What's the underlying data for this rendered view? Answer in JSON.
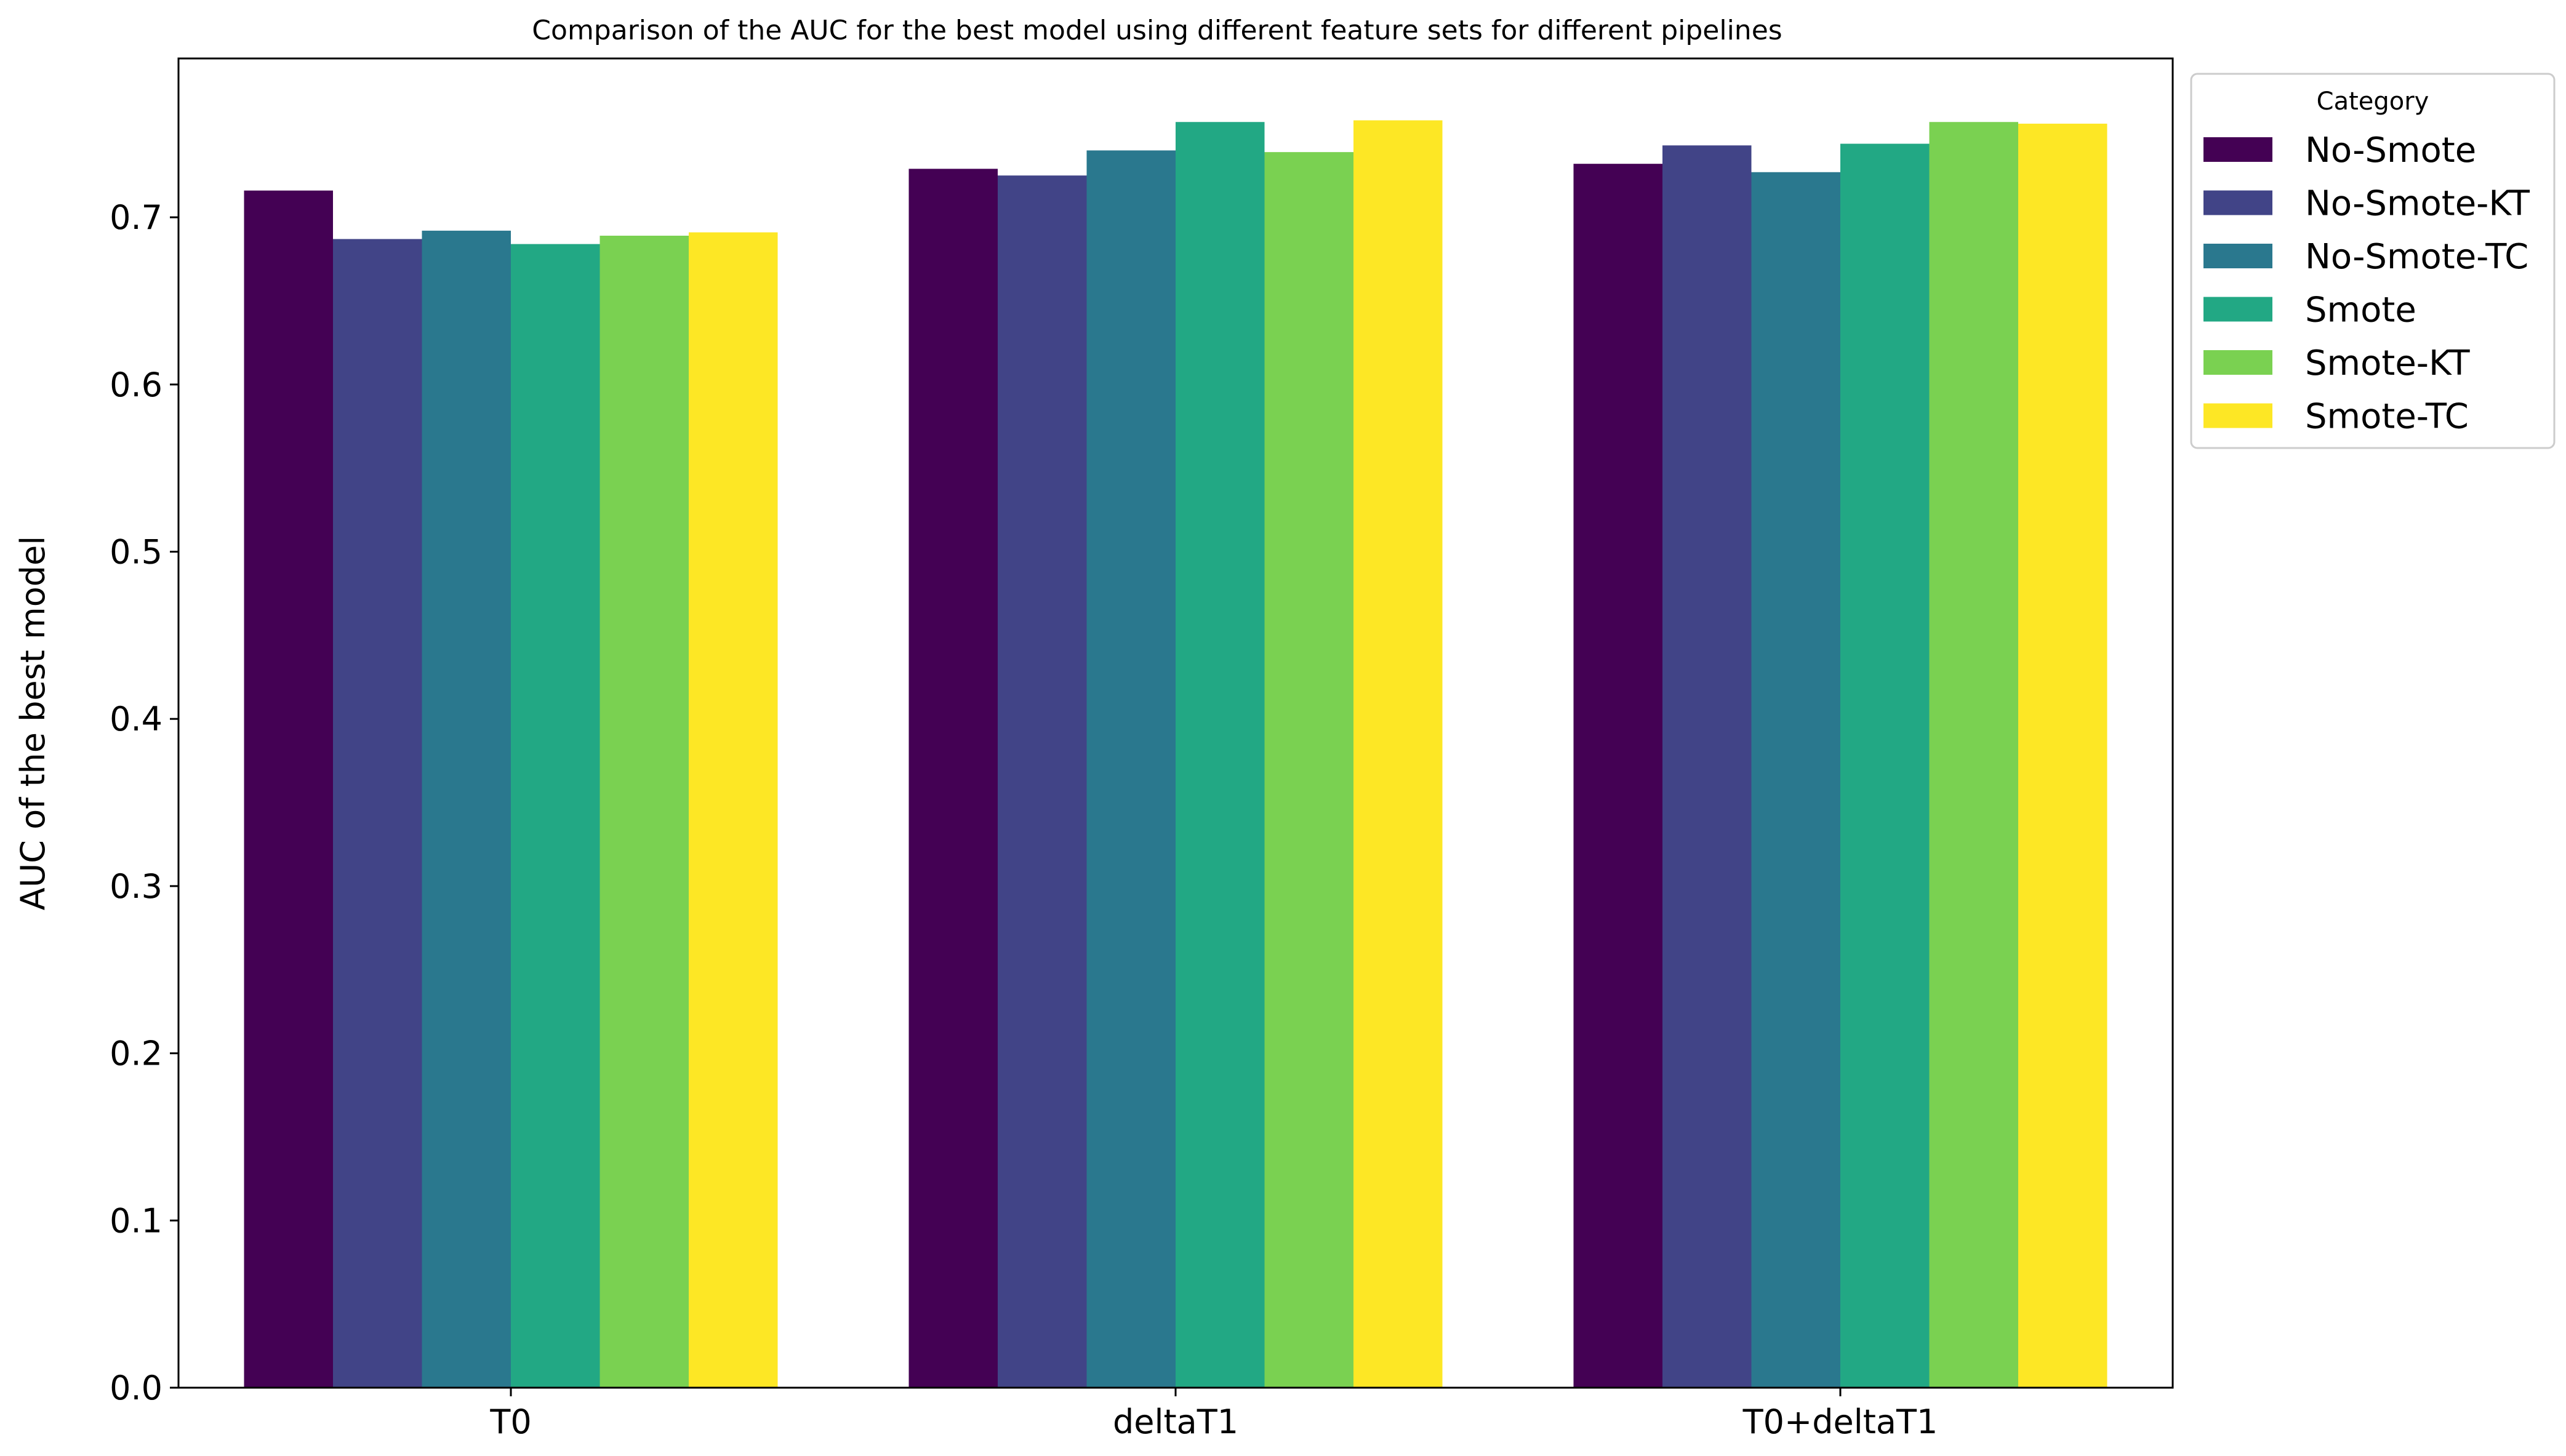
{
  "chart_data": {
    "type": "bar",
    "title": "Comparison of the AUC for the best model using different feature sets for different pipelines",
    "xlabel": "",
    "ylabel": "AUC of the best model",
    "ylim": [
      0,
      0.795
    ],
    "yticks": [
      "0.0",
      "0.1",
      "0.2",
      "0.3",
      "0.4",
      "0.5",
      "0.6",
      "0.7"
    ],
    "categories": [
      "T0",
      "deltaT1",
      "T0+deltaT1"
    ],
    "legend": {
      "title": "Category",
      "placement": "outside-top-right"
    },
    "series": [
      {
        "name": "No-Smote",
        "color": "#440154",
        "values": [
          0.716,
          0.729,
          0.732
        ]
      },
      {
        "name": "No-Smote-KT",
        "color": "#414487",
        "values": [
          0.687,
          0.725,
          0.743
        ]
      },
      {
        "name": "No-Smote-TC",
        "color": "#2a788e",
        "values": [
          0.692,
          0.74,
          0.727
        ]
      },
      {
        "name": "Smote",
        "color": "#22a884",
        "values": [
          0.684,
          0.757,
          0.744
        ]
      },
      {
        "name": "Smote-KT",
        "color": "#7ad151",
        "values": [
          0.689,
          0.739,
          0.757
        ]
      },
      {
        "name": "Smote-TC",
        "color": "#fde725",
        "values": [
          0.691,
          0.758,
          0.756
        ]
      }
    ],
    "grid": false
  }
}
